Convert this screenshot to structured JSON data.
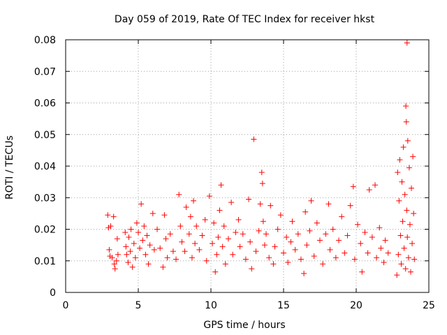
{
  "chart_data": {
    "type": "scatter",
    "title": "Day 059 of 2019, Rate Of TEC Index for receiver hkst",
    "xlabel": "GPS time / hours",
    "ylabel": "ROTI / TECUs",
    "xlim": [
      0,
      25
    ],
    "ylim": [
      0,
      0.08
    ],
    "xticks": [
      0,
      5,
      10,
      15,
      20,
      25
    ],
    "yticks": [
      0,
      0.01,
      0.02,
      0.03,
      0.04,
      0.05,
      0.06,
      0.07,
      0.08
    ],
    "xtick_labels": [
      "0",
      "5",
      "10",
      "15",
      "20",
      "25"
    ],
    "ytick_labels": [
      "0",
      "0.01",
      "0.02",
      "0.03",
      "0.04",
      "0.05",
      "0.06",
      "0.07",
      "0.08"
    ],
    "grid": true,
    "marker": "+",
    "marker_color": "#ff0000",
    "series": [
      {
        "name": "ROTI",
        "points": [
          [
            2.9,
            0.0245
          ],
          [
            2.95,
            0.0205
          ],
          [
            3.0,
            0.0135
          ],
          [
            3.05,
            0.0115
          ],
          [
            3.1,
            0.021
          ],
          [
            3.2,
            0.011
          ],
          [
            3.3,
            0.024
          ],
          [
            3.35,
            0.009
          ],
          [
            3.4,
            0.0075
          ],
          [
            3.5,
            0.01
          ],
          [
            3.55,
            0.017
          ],
          [
            3.6,
            0.012
          ],
          [
            4.1,
            0.019
          ],
          [
            4.15,
            0.0145
          ],
          [
            4.2,
            0.012
          ],
          [
            4.3,
            0.0095
          ],
          [
            4.35,
            0.0175
          ],
          [
            4.45,
            0.013
          ],
          [
            4.5,
            0.02
          ],
          [
            4.6,
            0.008
          ],
          [
            4.7,
            0.0155
          ],
          [
            4.8,
            0.011
          ],
          [
            4.9,
            0.022
          ],
          [
            5.0,
            0.019
          ],
          [
            5.1,
            0.014
          ],
          [
            5.2,
            0.028
          ],
          [
            5.3,
            0.0165
          ],
          [
            5.4,
            0.021
          ],
          [
            5.5,
            0.012
          ],
          [
            5.6,
            0.018
          ],
          [
            5.7,
            0.009
          ],
          [
            5.8,
            0.015
          ],
          [
            6.0,
            0.025
          ],
          [
            6.1,
            0.0135
          ],
          [
            6.3,
            0.02
          ],
          [
            6.5,
            0.014
          ],
          [
            6.7,
            0.008
          ],
          [
            6.8,
            0.0245
          ],
          [
            6.9,
            0.017
          ],
          [
            7.0,
            0.011
          ],
          [
            7.2,
            0.0185
          ],
          [
            7.4,
            0.013
          ],
          [
            7.6,
            0.0105
          ],
          [
            7.8,
            0.031
          ],
          [
            7.9,
            0.021
          ],
          [
            8.0,
            0.016
          ],
          [
            8.2,
            0.013
          ],
          [
            8.3,
            0.027
          ],
          [
            8.5,
            0.0185
          ],
          [
            8.6,
            0.024
          ],
          [
            8.7,
            0.011
          ],
          [
            8.8,
            0.029
          ],
          [
            8.9,
            0.0155
          ],
          [
            9.0,
            0.021
          ],
          [
            9.2,
            0.0135
          ],
          [
            9.4,
            0.018
          ],
          [
            9.6,
            0.023
          ],
          [
            9.7,
            0.01
          ],
          [
            9.9,
            0.0305
          ],
          [
            10.1,
            0.0155
          ],
          [
            10.2,
            0.022
          ],
          [
            10.3,
            0.0065
          ],
          [
            10.4,
            0.012
          ],
          [
            10.5,
            0.0175
          ],
          [
            10.6,
            0.026
          ],
          [
            10.7,
            0.034
          ],
          [
            10.8,
            0.0145
          ],
          [
            10.9,
            0.021
          ],
          [
            11.0,
            0.009
          ],
          [
            11.2,
            0.017
          ],
          [
            11.4,
            0.0285
          ],
          [
            11.5,
            0.012
          ],
          [
            11.7,
            0.019
          ],
          [
            11.9,
            0.023
          ],
          [
            12.0,
            0.0145
          ],
          [
            12.2,
            0.0185
          ],
          [
            12.4,
            0.0105
          ],
          [
            12.6,
            0.0295
          ],
          [
            12.7,
            0.016
          ],
          [
            12.8,
            0.0075
          ],
          [
            12.95,
            0.0485
          ],
          [
            13.1,
            0.013
          ],
          [
            13.3,
            0.0195
          ],
          [
            13.4,
            0.028
          ],
          [
            13.5,
            0.038
          ],
          [
            13.55,
            0.0345
          ],
          [
            13.6,
            0.0225
          ],
          [
            13.7,
            0.015
          ],
          [
            13.8,
            0.0185
          ],
          [
            14.0,
            0.011
          ],
          [
            14.1,
            0.0275
          ],
          [
            14.3,
            0.009
          ],
          [
            14.4,
            0.0145
          ],
          [
            14.6,
            0.02
          ],
          [
            14.8,
            0.0245
          ],
          [
            15.0,
            0.0125
          ],
          [
            15.2,
            0.0175
          ],
          [
            15.3,
            0.0095
          ],
          [
            15.5,
            0.016
          ],
          [
            15.6,
            0.0225
          ],
          [
            15.8,
            0.0135
          ],
          [
            16.0,
            0.0185
          ],
          [
            16.2,
            0.0105
          ],
          [
            16.4,
            0.006
          ],
          [
            16.5,
            0.0255
          ],
          [
            16.6,
            0.015
          ],
          [
            16.8,
            0.0195
          ],
          [
            16.9,
            0.029
          ],
          [
            17.1,
            0.0115
          ],
          [
            17.3,
            0.022
          ],
          [
            17.5,
            0.0165
          ],
          [
            17.7,
            0.009
          ],
          [
            17.9,
            0.0185
          ],
          [
            18.1,
            0.028
          ],
          [
            18.2,
            0.0135
          ],
          [
            18.4,
            0.02
          ],
          [
            18.6,
            0.011
          ],
          [
            18.8,
            0.0165
          ],
          [
            19.0,
            0.024
          ],
          [
            19.2,
            0.0125
          ],
          [
            19.4,
            0.018
          ],
          [
            19.6,
            0.0275
          ],
          [
            19.8,
            0.0335
          ],
          [
            19.9,
            0.0105
          ],
          [
            20.1,
            0.0215
          ],
          [
            20.3,
            0.0155
          ],
          [
            20.4,
            0.0065
          ],
          [
            20.6,
            0.019
          ],
          [
            20.8,
            0.0125
          ],
          [
            20.9,
            0.0325
          ],
          [
            21.1,
            0.0175
          ],
          [
            21.3,
            0.034
          ],
          [
            21.4,
            0.011
          ],
          [
            21.6,
            0.0205
          ],
          [
            21.7,
            0.014
          ],
          [
            21.9,
            0.0095
          ],
          [
            22.0,
            0.0165
          ],
          [
            22.2,
            0.0125
          ],
          [
            22.8,
            0.0055
          ],
          [
            22.85,
            0.038
          ],
          [
            22.9,
            0.012
          ],
          [
            22.95,
            0.029
          ],
          [
            23.0,
            0.042
          ],
          [
            23.05,
            0.018
          ],
          [
            23.1,
            0.009
          ],
          [
            23.15,
            0.035
          ],
          [
            23.2,
            0.0225
          ],
          [
            23.25,
            0.046
          ],
          [
            23.3,
            0.014
          ],
          [
            23.35,
            0.031
          ],
          [
            23.4,
            0.0075
          ],
          [
            23.42,
            0.059
          ],
          [
            23.45,
            0.054
          ],
          [
            23.48,
            0.026
          ],
          [
            23.5,
            0.079
          ],
          [
            23.52,
            0.0175
          ],
          [
            23.55,
            0.048
          ],
          [
            23.6,
            0.011
          ],
          [
            23.65,
            0.0395
          ],
          [
            23.7,
            0.0215
          ],
          [
            23.75,
            0.0065
          ],
          [
            23.8,
            0.033
          ],
          [
            23.85,
            0.0155
          ],
          [
            23.9,
            0.043
          ],
          [
            23.95,
            0.025
          ],
          [
            24.0,
            0.0105
          ]
        ]
      }
    ]
  }
}
